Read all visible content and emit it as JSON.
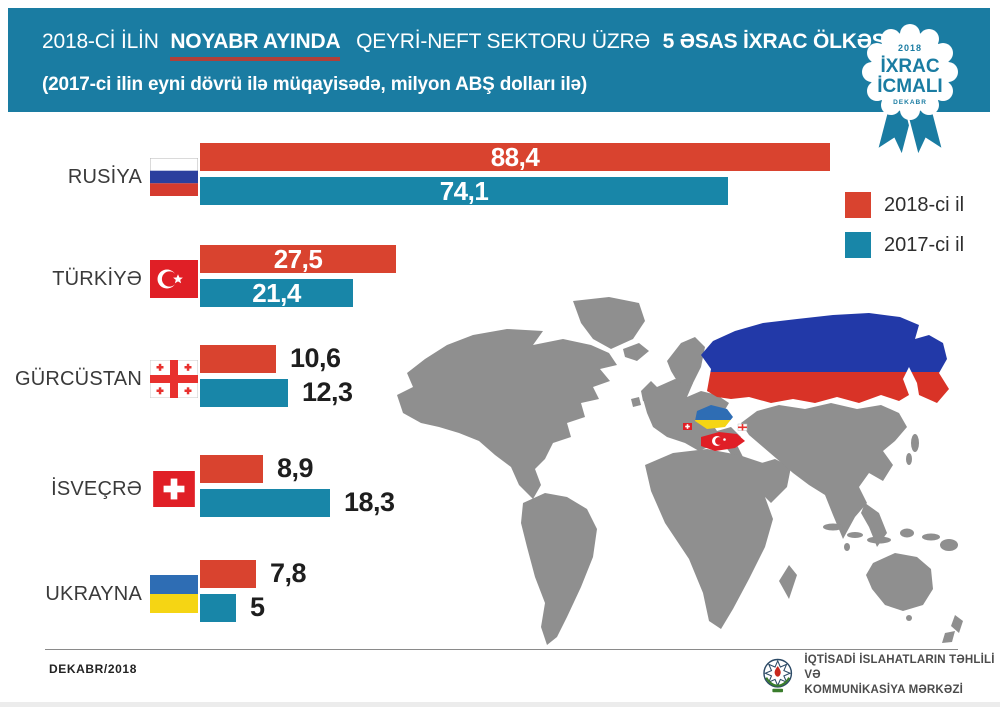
{
  "header": {
    "seg1": "2018-Cİ İLİN",
    "seg2": "NOYABR AYINDA",
    "seg3": "QEYRİ-NEFT SEKTORU ÜZRƏ",
    "seg4": "5 ƏSAS İXRAC ÖLKƏSİ",
    "subtitle": "(2017-ci ilin eyni dövrü ilə müqayisədə, milyon ABŞ dolları ilə)"
  },
  "badge": {
    "year": "2018",
    "title1": "İXRAC",
    "title2": "İCMALI",
    "month": "DEKABR"
  },
  "legend": {
    "items": [
      {
        "label": "2018-ci il",
        "color": "#d9432f"
      },
      {
        "label": "2017-ci il",
        "color": "#1886a8"
      }
    ]
  },
  "chart_data": {
    "type": "bar",
    "orientation": "horizontal",
    "title": "2018-ci ilin noyabr ayında qeyri-neft sektoru üzrə 5 əsas ixrac ölkəsi",
    "subtitle": "2017-ci ilin eyni dövrü ilə müqayisədə",
    "unit": "milyon ABŞ dolları",
    "categories": [
      "RUSİYA",
      "TÜRKİYƏ",
      "GÜRCÜSTAN",
      "İSVEÇRƏ",
      "UKRAYNA"
    ],
    "flags": [
      "russia",
      "turkey",
      "georgia",
      "switzerland",
      "ukraine"
    ],
    "series": [
      {
        "name": "2018-ci il",
        "color": "#d9432f",
        "values": [
          88.4,
          27.5,
          10.6,
          8.9,
          7.8
        ],
        "labels": [
          "88,4",
          "27,5",
          "10,6",
          "8,9",
          "7,8"
        ]
      },
      {
        "name": "2017-ci il",
        "color": "#1886a8",
        "values": [
          74.1,
          21.4,
          12.3,
          18.3,
          5
        ],
        "labels": [
          "74,1",
          "21,4",
          "12,3",
          "18,3",
          "5"
        ]
      }
    ],
    "xlim": [
      0,
      100
    ],
    "legend_position": "right"
  },
  "colors": {
    "header_band": "#1a7ca2",
    "underline": "#b0403a",
    "map_gray": "#8f8f8f"
  },
  "footer": {
    "date": "DEKABR/2018",
    "org1": "İQTİSADİ İSLAHATLARIN TƏHLİLİ VƏ",
    "org2": "KOMMUNİKASİYA MƏRKƏZİ"
  }
}
